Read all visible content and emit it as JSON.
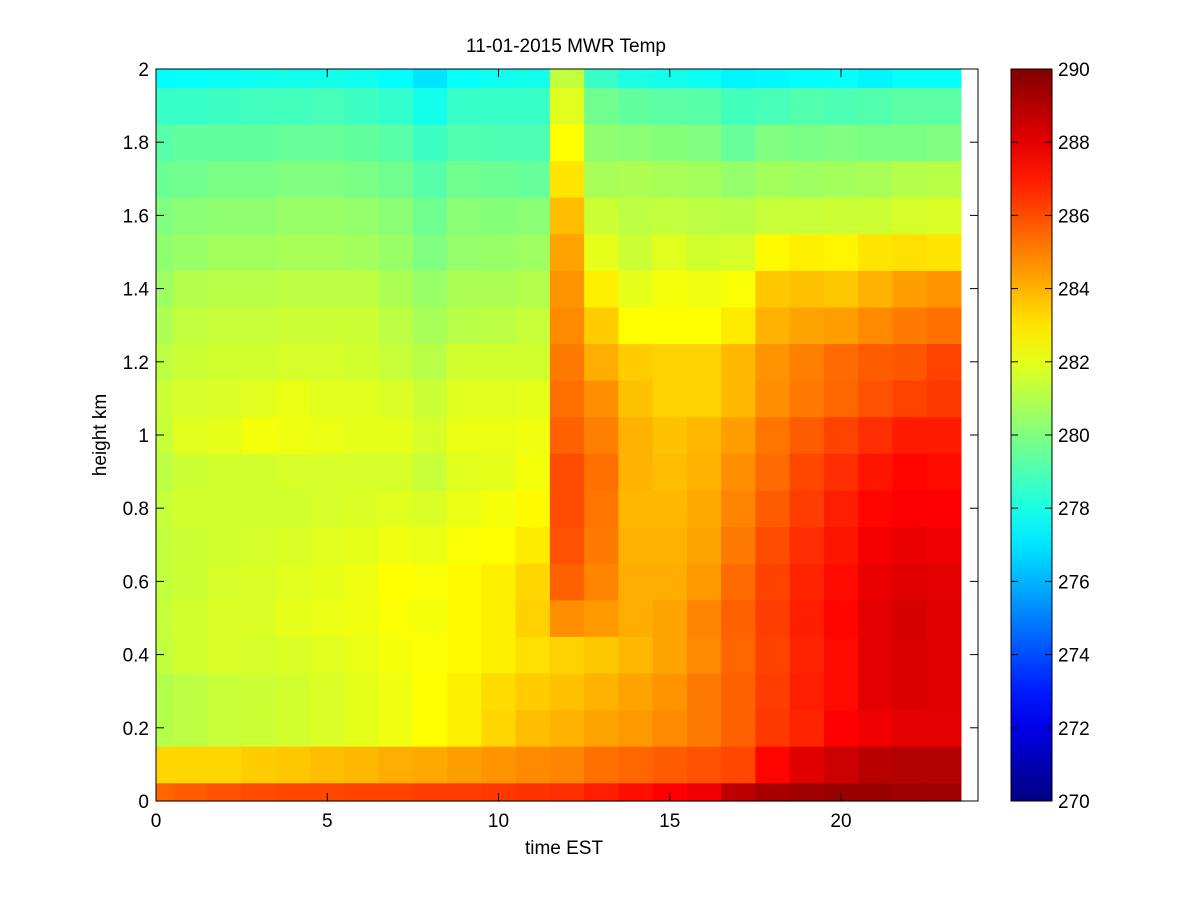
{
  "chart_data": {
    "type": "heatmap",
    "title": "11-01-2015 MWR Temp",
    "xlabel": "time EST",
    "ylabel": "height km",
    "xlim": [
      0,
      24
    ],
    "ylim": [
      0,
      2
    ],
    "x_ticks": [
      0,
      5,
      10,
      15,
      20
    ],
    "y_ticks": [
      0,
      0.2,
      0.4,
      0.6,
      0.8,
      1,
      1.2,
      1.4,
      1.6,
      1.8,
      2
    ],
    "y_tick_labels": [
      "0",
      "0.2",
      "0.4",
      "0.6",
      "0.8",
      "1",
      "1.2",
      "1.4",
      "1.6",
      "1.8",
      "2"
    ],
    "colorbar": {
      "min": 270,
      "max": 290,
      "ticks": [
        270,
        272,
        274,
        276,
        278,
        280,
        282,
        284,
        286,
        288,
        290
      ],
      "colormap": "jet"
    },
    "grid": false,
    "time_hours": [
      0,
      1,
      2,
      3,
      4,
      5,
      6,
      7,
      8,
      9,
      10,
      11,
      12,
      13,
      14,
      15,
      16,
      17,
      18,
      19,
      20,
      21,
      22,
      23
    ],
    "height_km": [
      0,
      0.1,
      0.2,
      0.3,
      0.4,
      0.5,
      0.6,
      0.7,
      0.8,
      0.9,
      1.0,
      1.1,
      1.2,
      1.3,
      1.4,
      1.5,
      1.6,
      1.7,
      1.8,
      1.9,
      2.0
    ],
    "temperature_K": [
      [
        285.5,
        285.7,
        285.9,
        286.0,
        286.1,
        286.1,
        286.2,
        286.2,
        286.3,
        286.3,
        286.4,
        286.5,
        286.6,
        286.9,
        287.2,
        287.5,
        287.8,
        288.8,
        289.2,
        289.4,
        289.5,
        289.5,
        289.4,
        289.4
      ],
      [
        283.3,
        283.3,
        283.3,
        283.5,
        283.6,
        283.8,
        283.9,
        284.1,
        284.2,
        284.4,
        284.6,
        284.8,
        284.9,
        285.3,
        285.5,
        285.7,
        285.9,
        286.1,
        287.4,
        288.1,
        288.5,
        288.9,
        289.0,
        289.0
      ],
      [
        281.0,
        281.2,
        281.4,
        281.5,
        281.6,
        281.8,
        282.0,
        282.2,
        282.5,
        282.8,
        283.3,
        283.8,
        284.0,
        284.3,
        284.5,
        284.8,
        285.1,
        285.6,
        286.4,
        286.8,
        287.5,
        287.8,
        288.0,
        288.0
      ],
      [
        281.0,
        281.2,
        281.4,
        281.5,
        281.6,
        281.8,
        282.0,
        282.2,
        282.5,
        282.8,
        283.2,
        283.5,
        283.7,
        284.0,
        284.3,
        284.6,
        285.1,
        285.6,
        286.3,
        286.9,
        287.3,
        288.0,
        288.2,
        288.1
      ],
      [
        281.3,
        281.6,
        281.8,
        281.7,
        281.8,
        281.9,
        282.1,
        282.3,
        282.4,
        282.6,
        282.8,
        283.1,
        283.4,
        283.6,
        283.9,
        284.3,
        284.8,
        285.5,
        286.2,
        286.8,
        287.3,
        288.0,
        288.2,
        288.1
      ],
      [
        281.4,
        281.6,
        281.8,
        281.8,
        282.0,
        282.1,
        282.2,
        282.4,
        282.3,
        282.6,
        282.8,
        283.4,
        284.7,
        284.5,
        284.1,
        284.3,
        284.9,
        285.6,
        286.3,
        286.9,
        287.4,
        288.0,
        288.3,
        288.1
      ],
      [
        281.3,
        281.5,
        281.7,
        281.8,
        281.9,
        282.0,
        282.2,
        282.5,
        282.4,
        282.6,
        282.8,
        283.3,
        285.6,
        284.9,
        284.1,
        284.1,
        284.5,
        285.4,
        286.2,
        286.8,
        287.3,
        287.9,
        288.1,
        288.0
      ],
      [
        281.3,
        281.5,
        281.6,
        281.7,
        281.8,
        281.9,
        282.0,
        282.2,
        282.1,
        282.4,
        282.5,
        282.9,
        285.9,
        285.1,
        284.0,
        284.0,
        284.3,
        285.1,
        286.0,
        286.6,
        287.1,
        287.7,
        287.9,
        287.8
      ],
      [
        281.4,
        281.6,
        281.6,
        281.6,
        281.6,
        281.7,
        281.8,
        281.9,
        281.8,
        282.1,
        282.3,
        282.6,
        286.0,
        285.2,
        283.9,
        283.9,
        284.2,
        284.9,
        285.7,
        286.3,
        286.9,
        287.4,
        287.6,
        287.5
      ],
      [
        281.2,
        281.5,
        281.6,
        281.6,
        281.7,
        281.7,
        281.7,
        281.7,
        281.4,
        281.9,
        282.0,
        282.3,
        286.0,
        285.3,
        284.0,
        283.8,
        284.0,
        284.7,
        285.4,
        286.1,
        286.6,
        287.1,
        287.4,
        287.3
      ],
      [
        281.4,
        281.9,
        282.0,
        282.3,
        282.2,
        282.1,
        282.0,
        282.0,
        281.7,
        282.1,
        282.1,
        282.2,
        285.6,
        285.0,
        284.0,
        283.7,
        283.9,
        284.4,
        285.2,
        285.7,
        286.2,
        286.6,
        287.0,
        287.0
      ],
      [
        281.5,
        281.7,
        281.8,
        281.9,
        282.1,
        281.9,
        281.9,
        281.8,
        281.5,
        281.9,
        281.9,
        282.0,
        285.3,
        284.7,
        283.7,
        283.4,
        283.4,
        283.9,
        284.7,
        285.1,
        285.5,
        285.9,
        286.2,
        286.4
      ],
      [
        281.2,
        281.5,
        281.6,
        281.6,
        281.7,
        281.7,
        281.6,
        281.4,
        281.1,
        281.6,
        281.6,
        281.6,
        285.1,
        284.1,
        283.5,
        283.4,
        283.4,
        283.9,
        284.6,
        285.0,
        285.4,
        285.7,
        285.8,
        286.2
      ],
      [
        280.9,
        281.3,
        281.4,
        281.4,
        281.5,
        281.5,
        281.5,
        281.2,
        280.8,
        281.1,
        281.2,
        281.4,
        284.8,
        283.5,
        282.5,
        282.5,
        282.5,
        282.9,
        284.0,
        284.3,
        284.4,
        284.8,
        285.1,
        285.3
      ],
      [
        280.6,
        281.0,
        281.1,
        281.1,
        281.2,
        281.2,
        281.2,
        280.9,
        280.5,
        280.9,
        280.9,
        281.0,
        284.6,
        282.8,
        282.0,
        282.3,
        282.2,
        282.4,
        283.6,
        283.7,
        283.6,
        284.0,
        284.4,
        284.6
      ],
      [
        280.3,
        280.5,
        280.7,
        280.7,
        280.8,
        280.8,
        280.7,
        280.5,
        280.0,
        280.4,
        280.5,
        280.6,
        284.3,
        282.0,
        281.5,
        281.9,
        281.6,
        281.7,
        282.6,
        282.8,
        282.7,
        283.0,
        283.1,
        283.0
      ],
      [
        280.0,
        280.2,
        280.3,
        280.3,
        280.5,
        280.5,
        280.4,
        280.2,
        279.7,
        280.2,
        280.1,
        280.2,
        283.8,
        281.5,
        281.2,
        281.3,
        281.2,
        281.1,
        281.4,
        281.4,
        281.5,
        281.5,
        281.7,
        281.8
      ],
      [
        279.6,
        279.7,
        279.9,
        279.9,
        280.0,
        280.0,
        279.9,
        279.7,
        279.2,
        279.7,
        279.6,
        279.5,
        283.0,
        280.8,
        280.9,
        280.8,
        280.7,
        280.4,
        280.7,
        280.6,
        280.7,
        280.8,
        281.0,
        281.1
      ],
      [
        279.2,
        279.4,
        279.4,
        279.4,
        279.5,
        279.5,
        279.4,
        279.2,
        278.7,
        279.1,
        279.0,
        279.0,
        282.5,
        280.3,
        280.2,
        280.1,
        280.0,
        279.5,
        280.0,
        279.9,
        280.0,
        279.9,
        279.9,
        280.0
      ],
      [
        278.6,
        278.6,
        278.7,
        278.8,
        278.8,
        278.9,
        278.7,
        278.5,
        277.9,
        278.6,
        278.6,
        278.6,
        281.9,
        279.7,
        279.4,
        279.3,
        279.2,
        278.8,
        278.9,
        279.1,
        279.0,
        279.1,
        279.3,
        279.3
      ],
      [
        277.5,
        277.6,
        277.7,
        277.8,
        277.9,
        277.9,
        277.8,
        277.5,
        277.0,
        277.6,
        277.8,
        277.9,
        281.3,
        278.6,
        278.0,
        277.9,
        277.7,
        277.3,
        277.4,
        277.5,
        277.6,
        277.3,
        277.6,
        277.6
      ]
    ]
  }
}
